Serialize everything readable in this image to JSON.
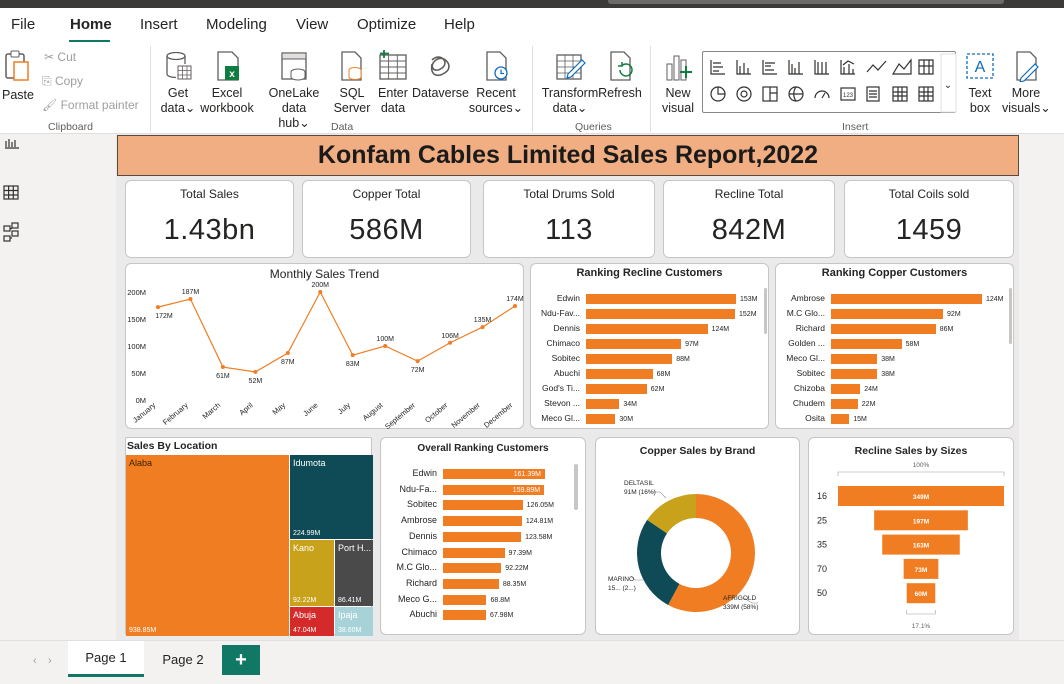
{
  "menu": [
    "File",
    "Home",
    "Insert",
    "Modeling",
    "View",
    "Optimize",
    "Help"
  ],
  "ribbon": {
    "paste": "Paste",
    "cut": "Cut",
    "copy": "Copy",
    "format_painter": "Format painter",
    "clipboard_group": "Clipboard",
    "get_data": [
      "Get",
      "data"
    ],
    "excel": [
      "Excel",
      "workbook"
    ],
    "onelake": [
      "OneLake data",
      "hub"
    ],
    "sql": [
      "SQL",
      "Server"
    ],
    "enter_data": [
      "Enter",
      "data"
    ],
    "dataverse": "Dataverse",
    "recent": [
      "Recent",
      "sources"
    ],
    "data_group": "Data",
    "transform": [
      "Transform",
      "data"
    ],
    "refresh": "Refresh",
    "queries_group": "Queries",
    "new_visual": [
      "New",
      "visual"
    ],
    "text_box": [
      "Text",
      "box"
    ],
    "more_visuals": [
      "More",
      "visuals"
    ],
    "insert_group": "Insert"
  },
  "report": {
    "title": "Konfam Cables Limited Sales Report,2022",
    "kpis": [
      {
        "label": "Total Sales",
        "value": "1.43bn"
      },
      {
        "label": "Copper Total",
        "value": "586M"
      },
      {
        "label": "Total Drums Sold",
        "value": "113"
      },
      {
        "label": "Recline Total",
        "value": "842M"
      },
      {
        "label": "Total Coils sold",
        "value": "1459"
      }
    ]
  },
  "chart_data": [
    {
      "type": "line",
      "title": "Monthly Sales Trend",
      "categories": [
        "January",
        "February",
        "March",
        "April",
        "May",
        "June",
        "July",
        "August",
        "September",
        "October",
        "November",
        "December"
      ],
      "values": [
        172,
        187,
        61,
        52,
        87,
        200,
        83,
        100,
        72,
        106,
        135,
        174
      ],
      "data_labels": [
        "172M",
        "187M",
        "61M",
        "52M",
        "87M",
        "200M",
        "83M",
        "100M",
        "72M",
        "106M",
        "135M",
        "174M"
      ],
      "y_ticks": [
        "0M",
        "50M",
        "100M",
        "150M",
        "200M"
      ],
      "ylim": [
        0,
        200
      ],
      "color": "#f07d22"
    },
    {
      "type": "bar",
      "title": "Ranking Recline Customers",
      "categories": [
        "Edwin",
        "Ndu-Fav...",
        "Dennis",
        "Chimaco",
        "Sobitec",
        "Abuchi",
        "God's Ti...",
        "Stevon ...",
        "Meco Gl..."
      ],
      "values": [
        153,
        152,
        124,
        97,
        88,
        68,
        62,
        34,
        30
      ],
      "data_labels": [
        "153M",
        "152M",
        "124M",
        "97M",
        "88M",
        "68M",
        "62M",
        "34M",
        "30M"
      ],
      "max": 153
    },
    {
      "type": "bar",
      "title": "Ranking Copper Customers",
      "categories": [
        "Ambrose",
        "M.C Glo...",
        "Richard",
        "Golden ...",
        "Meco Gl...",
        "Sobitec",
        "Chizoba",
        "Chudem",
        "Osita"
      ],
      "values": [
        124,
        92,
        86,
        58,
        38,
        38,
        24,
        22,
        15
      ],
      "data_labels": [
        "124M",
        "92M",
        "86M",
        "58M",
        "38M",
        "38M",
        "24M",
        "22M",
        "15M"
      ],
      "max": 124
    },
    {
      "type": "heatmap",
      "title": "Sales By Location",
      "categories": [
        "Alaba",
        "Idumota",
        "Kano",
        "Port H...",
        "Abuja",
        "Ipaja"
      ],
      "values": [
        938.85,
        224.99,
        92.22,
        86.41,
        47.04,
        38.6
      ],
      "data_labels": [
        "938.85M",
        "224.99M",
        "92.22M",
        "86.41M",
        "47.04M",
        "38.60M"
      ]
    },
    {
      "type": "bar",
      "title": "Overall Ranking Customers",
      "categories": [
        "Edwin",
        "Ndu-Fa...",
        "Sobitec",
        "Ambrose",
        "Dennis",
        "Chimaco",
        "M.C Glo...",
        "Richard",
        "Meco G...",
        "Abuchi"
      ],
      "values": [
        161.39,
        159.89,
        126.05,
        124.81,
        123.58,
        97.39,
        92.22,
        88.35,
        68.8,
        67.98
      ],
      "data_labels": [
        "161.39M",
        "159.89M",
        "126.05M",
        "124.81M",
        "123.58M",
        "97.39M",
        "92.22M",
        "88.35M",
        "68.8M",
        "67.98M"
      ],
      "max": 161.39
    },
    {
      "type": "pie",
      "title": "Copper Sales by Brand",
      "categories": [
        "AFRIGOLD",
        "MARINO",
        "DELTASIL"
      ],
      "values": [
        339,
        156,
        91
      ],
      "labels": [
        "AFRIGOLD",
        "MARINO",
        "DELTASIL"
      ],
      "value_labels": [
        "339M (58%)",
        "15... (2...)",
        "91M (16%)"
      ],
      "colors": [
        "#f07d22",
        "#0f4b57",
        "#c9a21b"
      ]
    },
    {
      "type": "bar",
      "title": "Recline Sales by Sizes",
      "categories": [
        "16",
        "25",
        "35",
        "70",
        "50"
      ],
      "values": [
        349,
        197,
        163,
        73,
        60
      ],
      "data_labels": [
        "349M",
        "197M",
        "163M",
        "73M",
        "60M"
      ],
      "top_label": "100%",
      "bottom_label": "17.1%"
    }
  ],
  "pages": [
    "Page 1",
    "Page 2"
  ],
  "add_page": "+"
}
